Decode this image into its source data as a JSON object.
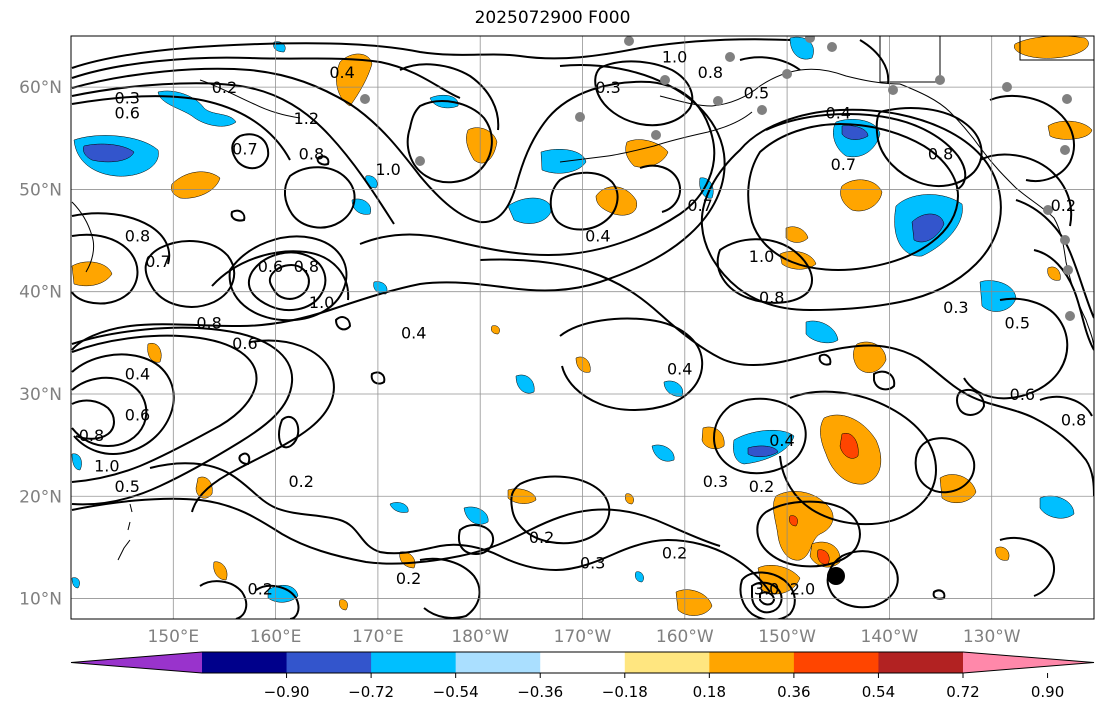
{
  "title": "2025072900 F000",
  "lat_labels": [
    {
      "label": "60°N",
      "value": 60
    },
    {
      "label": "50°N",
      "value": 50
    },
    {
      "label": "40°N",
      "value": 40
    },
    {
      "label": "30°N",
      "value": 30
    },
    {
      "label": "20°N",
      "value": 20
    },
    {
      "label": "10°N",
      "value": 10
    }
  ],
  "lon_labels": [
    {
      "label": "150°E",
      "value": 150
    },
    {
      "label": "160°E",
      "value": 160
    },
    {
      "label": "170°E",
      "value": 170
    },
    {
      "label": "180°W",
      "value": 180
    },
    {
      "label": "170°W",
      "value": 190
    },
    {
      "label": "160°W",
      "value": 200
    },
    {
      "label": "150°W",
      "value": 210
    },
    {
      "label": "140°W",
      "value": 220
    },
    {
      "label": "130°W",
      "value": 230
    }
  ],
  "extent": {
    "lon_min": 140,
    "lon_max": 240,
    "lat_min": 8,
    "lat_max": 65
  },
  "colorbar": {
    "colors": [
      "#9933cc",
      "#00008b",
      "#3355cc",
      "#00bfff",
      "#aadfff",
      "#ffffff",
      "#ffe680",
      "#ffa500",
      "#ff4500",
      "#b22222",
      "#ff88aa"
    ],
    "tick_labels": [
      "−0.90",
      "−0.72",
      "−0.54",
      "−0.36",
      "−0.18",
      "0.18",
      "0.36",
      "0.54",
      "0.72",
      "0.90"
    ]
  },
  "contour_labels": [
    {
      "text": "0.4",
      "lon": 166.5,
      "lat": 61.5
    },
    {
      "text": "0.2",
      "lon": 155,
      "lat": 60
    },
    {
      "text": "0.3",
      "lon": 145.5,
      "lat": 59
    },
    {
      "text": "0.6",
      "lon": 145.5,
      "lat": 57.5
    },
    {
      "text": "0.7",
      "lon": 157,
      "lat": 54
    },
    {
      "text": "1.2",
      "lon": 163,
      "lat": 57
    },
    {
      "text": "0.8",
      "lon": 163.5,
      "lat": 53.5
    },
    {
      "text": "1.0",
      "lon": 171,
      "lat": 52
    },
    {
      "text": "0.8",
      "lon": 146.5,
      "lat": 45.5
    },
    {
      "text": "0.7",
      "lon": 148.5,
      "lat": 43
    },
    {
      "text": "0.6",
      "lon": 159.5,
      "lat": 42.5
    },
    {
      "text": "0.8",
      "lon": 163,
      "lat": 42.5
    },
    {
      "text": "1.0",
      "lon": 164.5,
      "lat": 39
    },
    {
      "text": "0.8",
      "lon": 153.5,
      "lat": 37
    },
    {
      "text": "0.6",
      "lon": 157,
      "lat": 35
    },
    {
      "text": "0.4",
      "lon": 173.5,
      "lat": 36
    },
    {
      "text": "0.4",
      "lon": 146.5,
      "lat": 32
    },
    {
      "text": "0.6",
      "lon": 146.5,
      "lat": 28
    },
    {
      "text": "0.8",
      "lon": 142,
      "lat": 26
    },
    {
      "text": "1.0",
      "lon": 143.5,
      "lat": 23
    },
    {
      "text": "0.5",
      "lon": 145.5,
      "lat": 21
    },
    {
      "text": "0.2",
      "lon": 162.5,
      "lat": 21.5
    },
    {
      "text": "0.3",
      "lon": 192.5,
      "lat": 60
    },
    {
      "text": "1.0",
      "lon": 199,
      "lat": 63
    },
    {
      "text": "0.8",
      "lon": 202.5,
      "lat": 61.5
    },
    {
      "text": "0.5",
      "lon": 207,
      "lat": 59.5
    },
    {
      "text": "0.4",
      "lon": 215,
      "lat": 57.5
    },
    {
      "text": "0.7",
      "lon": 215.5,
      "lat": 52.5
    },
    {
      "text": "0.8",
      "lon": 225,
      "lat": 53.5
    },
    {
      "text": "0.7",
      "lon": 201.5,
      "lat": 48.5
    },
    {
      "text": "0.4",
      "lon": 191.5,
      "lat": 45.5
    },
    {
      "text": "1.0",
      "lon": 207.5,
      "lat": 43.5
    },
    {
      "text": "0.8",
      "lon": 208.5,
      "lat": 39.5
    },
    {
      "text": "0.3",
      "lon": 226.5,
      "lat": 38.5
    },
    {
      "text": "0.5",
      "lon": 232.5,
      "lat": 37
    },
    {
      "text": "0.2",
      "lon": 237,
      "lat": 48.5
    },
    {
      "text": "0.6",
      "lon": 233,
      "lat": 30
    },
    {
      "text": "0.8",
      "lon": 238,
      "lat": 27.5
    },
    {
      "text": "0.4",
      "lon": 199.5,
      "lat": 32.5
    },
    {
      "text": "0.4",
      "lon": 209.5,
      "lat": 25.5
    },
    {
      "text": "0.2",
      "lon": 207.5,
      "lat": 21
    },
    {
      "text": "0.3",
      "lon": 203,
      "lat": 21.5
    },
    {
      "text": "0.2",
      "lon": 186,
      "lat": 16
    },
    {
      "text": "0.3",
      "lon": 191,
      "lat": 13.5
    },
    {
      "text": "0.2",
      "lon": 199,
      "lat": 14.5
    },
    {
      "text": "0.2",
      "lon": 173,
      "lat": 12
    },
    {
      "text": "0.2",
      "lon": 158.5,
      "lat": 11
    },
    {
      "text": "3.0",
      "lon": 208,
      "lat": 11
    },
    {
      "text": "2.0",
      "lon": 211.5,
      "lat": 11
    }
  ]
}
